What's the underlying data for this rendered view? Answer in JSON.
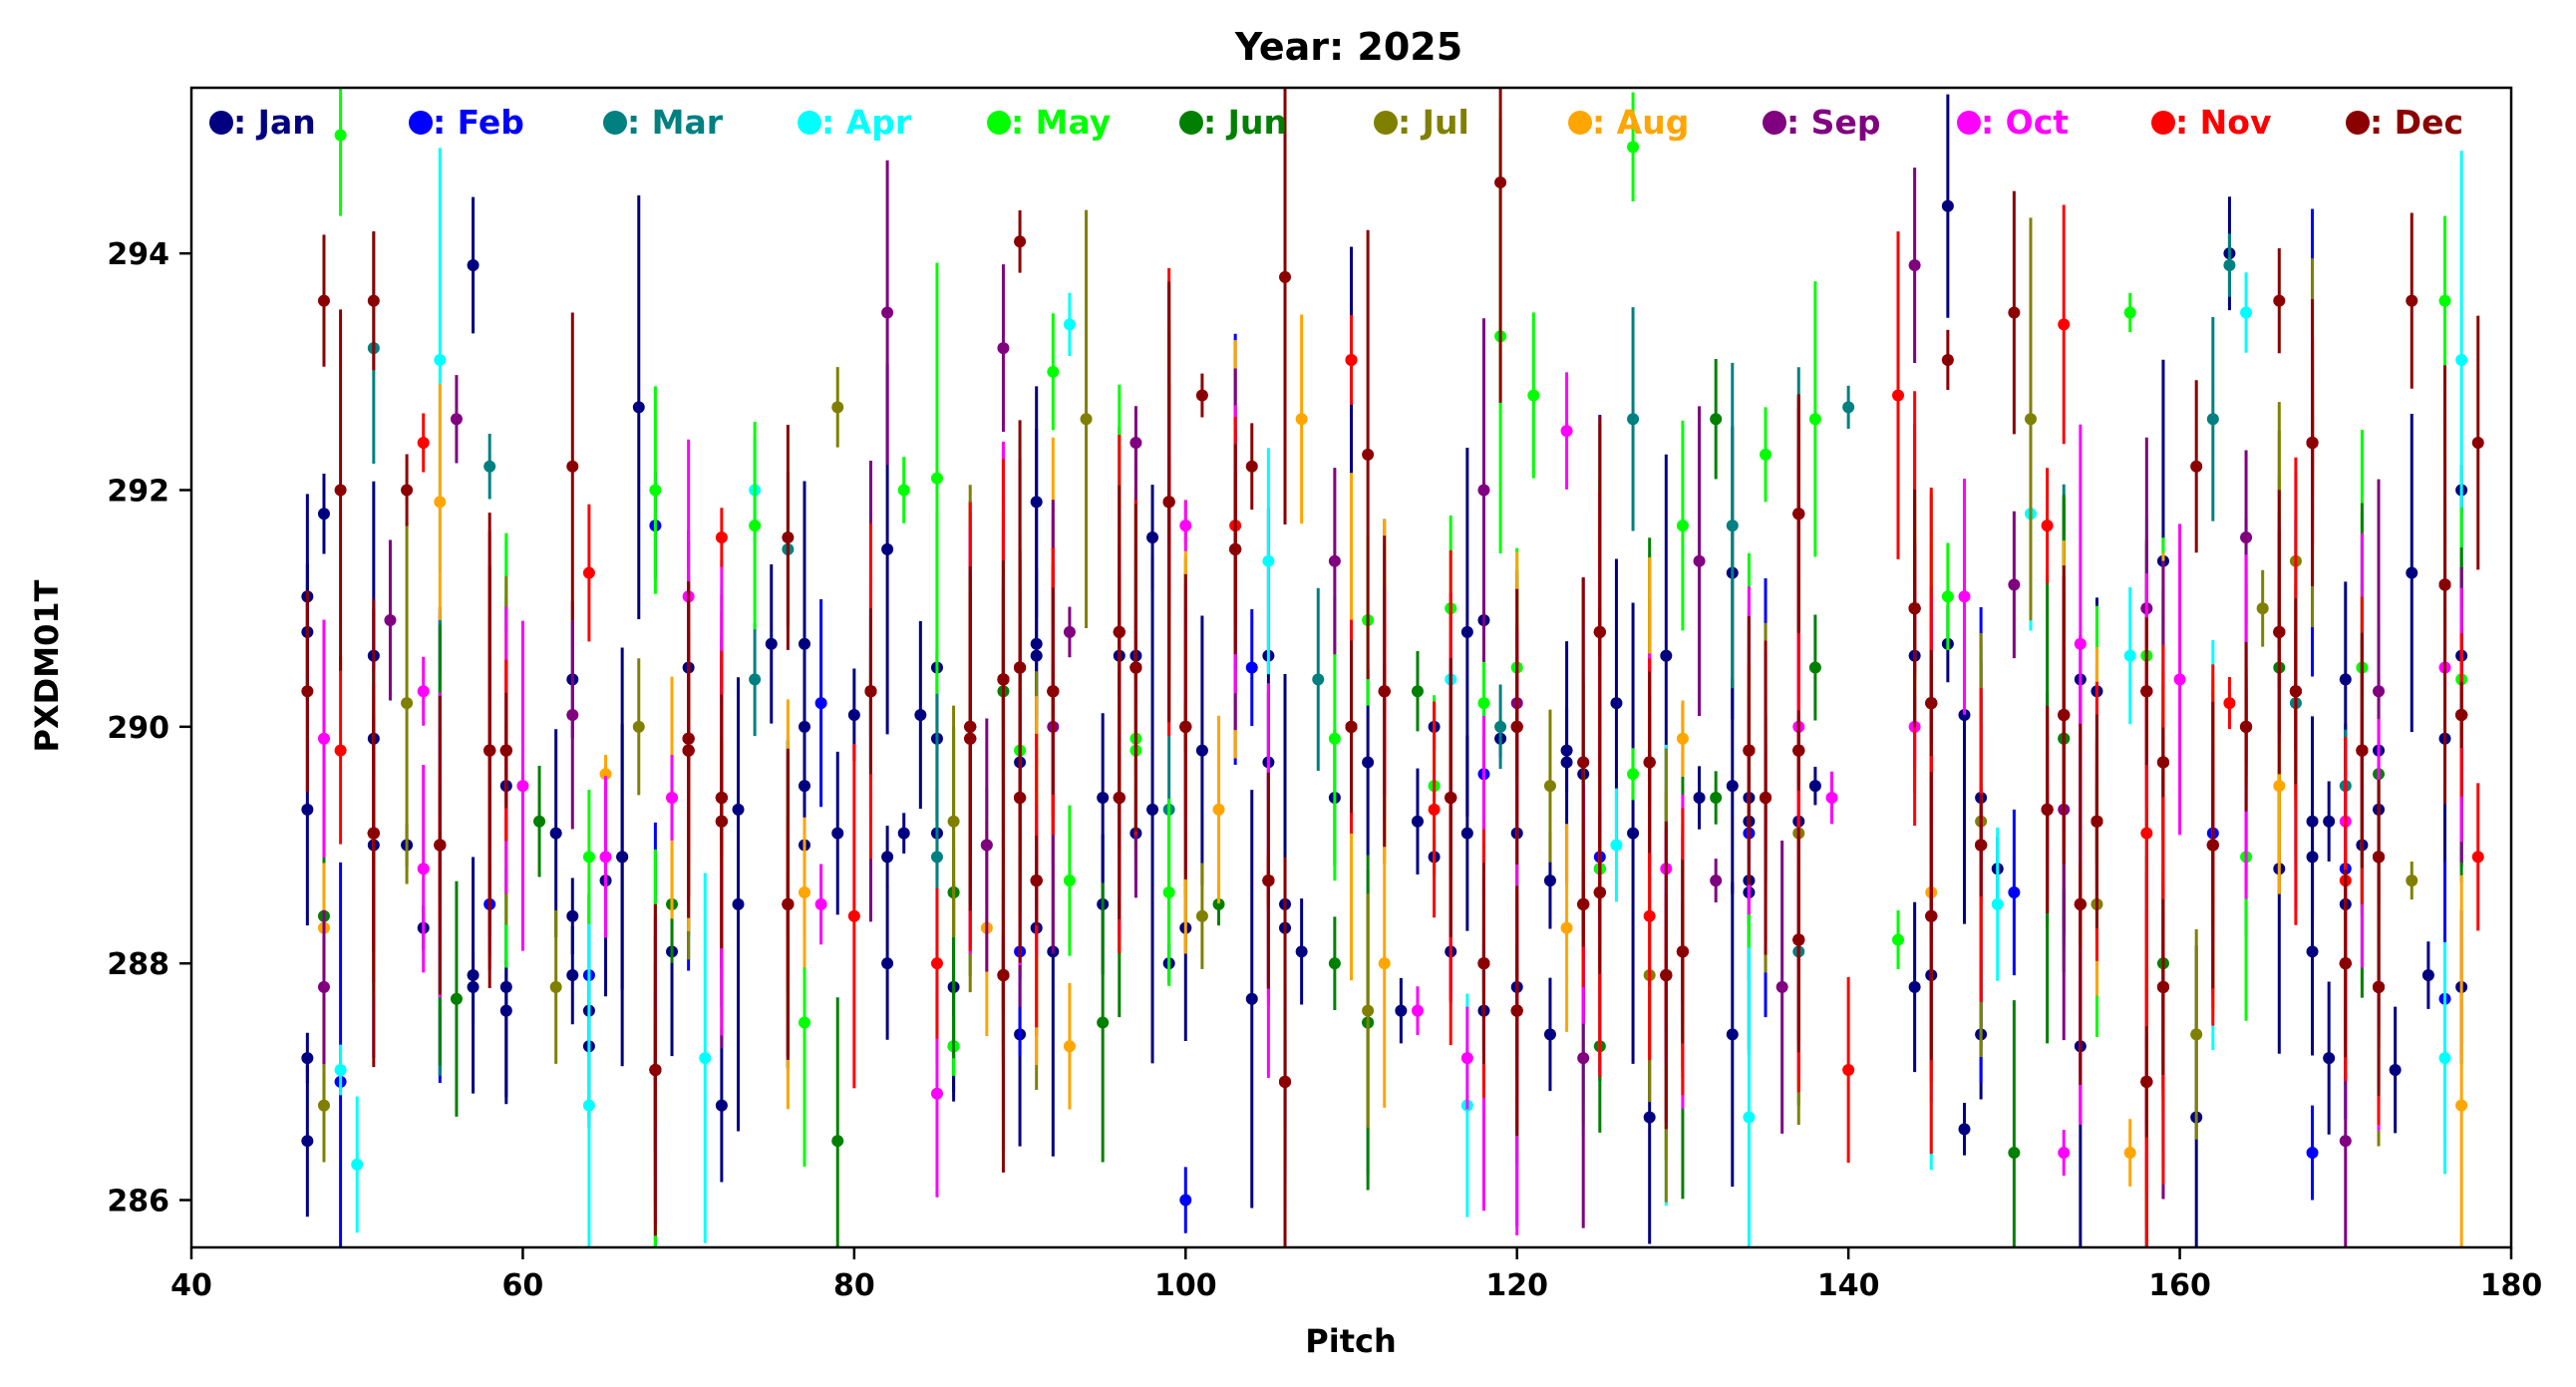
{
  "chart_data": {
    "type": "scatter",
    "title": "Year: 2025",
    "xlabel": "Pitch",
    "ylabel": "PXDM01T",
    "xlim": [
      40,
      180
    ],
    "ylim": [
      285.6,
      295.4
    ],
    "xticks": [
      40,
      60,
      80,
      100,
      120,
      140,
      160,
      180
    ],
    "yticks": [
      286,
      288,
      290,
      292,
      294
    ],
    "grid": false,
    "legend_position": "top",
    "errorbars": true,
    "x_range_observed": [
      47,
      177
    ],
    "series": [
      {
        "name": "Jan",
        "legend_label": ": Jan",
        "color": "#000080",
        "approx_points": [
          [
            47,
            287.2
          ],
          [
            57,
            293.9
          ],
          [
            67,
            292.7
          ],
          [
            73,
            288.5
          ],
          [
            82,
            291.5
          ],
          [
            96,
            290.6
          ],
          [
            110,
            293.1
          ],
          [
            122,
            288.7
          ],
          [
            146,
            294.4
          ],
          [
            163,
            294.0
          ],
          [
            170,
            288.5
          ],
          [
            177,
            287.8
          ]
        ]
      },
      {
        "name": "Feb",
        "legend_label": ": Feb",
        "color": "#0000ff",
        "approx_points": [
          [
            49,
            287.0
          ],
          [
            58,
            288.5
          ],
          [
            64,
            287.9
          ],
          [
            78,
            290.2
          ],
          [
            90,
            288.1
          ],
          [
            100,
            286.0
          ],
          [
            104,
            290.5
          ],
          [
            118,
            289.6
          ],
          [
            125,
            288.9
          ],
          [
            134,
            289.1
          ],
          [
            150,
            288.6
          ],
          [
            162,
            289.1
          ],
          [
            168,
            286.4
          ],
          [
            176,
            287.7
          ]
        ]
      },
      {
        "name": "Mar",
        "legend_label": ": Mar",
        "color": "#008080",
        "approx_points": [
          [
            51,
            293.2
          ],
          [
            58,
            292.2
          ],
          [
            74,
            290.4
          ],
          [
            85,
            288.9
          ],
          [
            99,
            289.3
          ],
          [
            108,
            290.4
          ],
          [
            119,
            290.0
          ],
          [
            127,
            292.6
          ],
          [
            133,
            291.7
          ],
          [
            137,
            288.1
          ],
          [
            140,
            292.7
          ],
          [
            162,
            292.6
          ],
          [
            163,
            293.9
          ],
          [
            170,
            289.5
          ]
        ]
      },
      {
        "name": "Apr",
        "legend_label": ": Apr",
        "color": "#00ffff",
        "approx_points": [
          [
            49,
            287.1
          ],
          [
            50,
            286.3
          ],
          [
            55,
            293.1
          ],
          [
            64,
            286.8
          ],
          [
            71,
            287.2
          ],
          [
            93,
            293.4
          ],
          [
            105,
            291.4
          ],
          [
            116,
            290.4
          ],
          [
            117,
            286.8
          ],
          [
            126,
            289.0
          ],
          [
            134,
            286.7
          ],
          [
            149,
            288.5
          ],
          [
            157,
            290.6
          ],
          [
            164,
            293.5
          ],
          [
            176,
            287.2
          ],
          [
            177,
            293.1
          ]
        ]
      },
      {
        "name": "May",
        "legend_label": ": May",
        "color": "#00ff00",
        "approx_points": [
          [
            49,
            295.0
          ],
          [
            68,
            292.0
          ],
          [
            74,
            291.7
          ],
          [
            83,
            292.0
          ],
          [
            92,
            293.0
          ],
          [
            97,
            289.9
          ],
          [
            111,
            290.9
          ],
          [
            119,
            293.3
          ],
          [
            121,
            292.8
          ],
          [
            127,
            294.9
          ],
          [
            135,
            292.3
          ],
          [
            138,
            292.6
          ],
          [
            146,
            291.1
          ],
          [
            157,
            293.5
          ],
          [
            171,
            290.5
          ],
          [
            176,
            293.6
          ]
        ]
      },
      {
        "name": "Jun",
        "legend_label": ": Jun",
        "color": "#008000",
        "approx_points": [
          [
            48,
            288.4
          ],
          [
            56,
            287.7
          ],
          [
            61,
            289.2
          ],
          [
            69,
            288.5
          ],
          [
            79,
            286.5
          ],
          [
            89,
            290.3
          ],
          [
            95,
            287.5
          ],
          [
            102,
            288.5
          ],
          [
            109,
            288.0
          ],
          [
            114,
            290.3
          ],
          [
            125,
            287.3
          ],
          [
            132,
            292.6
          ],
          [
            138,
            290.5
          ],
          [
            150,
            286.4
          ],
          [
            159,
            288.0
          ],
          [
            166,
            290.5
          ],
          [
            172,
            289.6
          ]
        ]
      },
      {
        "name": "Jul",
        "legend_label": ": Jul",
        "color": "#808000",
        "approx_points": [
          [
            48,
            286.8
          ],
          [
            53,
            290.2
          ],
          [
            62,
            287.8
          ],
          [
            67,
            290.0
          ],
          [
            79,
            292.7
          ],
          [
            86,
            289.2
          ],
          [
            94,
            292.6
          ],
          [
            101,
            288.4
          ],
          [
            111,
            287.6
          ],
          [
            122,
            289.5
          ],
          [
            128,
            287.9
          ],
          [
            137,
            289.1
          ],
          [
            148,
            289.2
          ],
          [
            151,
            292.6
          ],
          [
            161,
            287.4
          ],
          [
            167,
            291.4
          ],
          [
            174,
            288.7
          ]
        ]
      },
      {
        "name": "Aug",
        "legend_label": ": Aug",
        "color": "#ffa500",
        "approx_points": [
          [
            48,
            288.3
          ],
          [
            55,
            291.9
          ],
          [
            65,
            289.6
          ],
          [
            69,
            289.4
          ],
          [
            77,
            288.6
          ],
          [
            88,
            288.3
          ],
          [
            93,
            287.3
          ],
          [
            102,
            289.3
          ],
          [
            107,
            292.6
          ],
          [
            112,
            288.0
          ],
          [
            123,
            288.3
          ],
          [
            130,
            289.9
          ],
          [
            145,
            288.6
          ],
          [
            157,
            286.4
          ],
          [
            166,
            289.5
          ],
          [
            177,
            286.8
          ]
        ]
      },
      {
        "name": "Sep",
        "legend_label": ": Sep",
        "color": "#800080",
        "approx_points": [
          [
            48,
            287.8
          ],
          [
            52,
            290.9
          ],
          [
            56,
            292.6
          ],
          [
            63,
            290.1
          ],
          [
            82,
            293.5
          ],
          [
            89,
            293.2
          ],
          [
            97,
            292.4
          ],
          [
            109,
            291.4
          ],
          [
            118,
            292.0
          ],
          [
            124,
            287.2
          ],
          [
            131,
            291.4
          ],
          [
            136,
            287.8
          ],
          [
            144,
            293.9
          ],
          [
            150,
            291.2
          ],
          [
            164,
            291.6
          ],
          [
            170,
            286.5
          ],
          [
            177,
            290.1
          ]
        ]
      },
      {
        "name": "Oct",
        "legend_label": ": Oct",
        "color": "#ff00ff",
        "approx_points": [
          [
            48,
            289.9
          ],
          [
            54,
            290.3
          ],
          [
            60,
            289.5
          ],
          [
            70,
            291.1
          ],
          [
            78,
            288.5
          ],
          [
            87,
            289.9
          ],
          [
            100,
            291.7
          ],
          [
            114,
            287.6
          ],
          [
            123,
            292.5
          ],
          [
            129,
            288.8
          ],
          [
            139,
            289.4
          ],
          [
            147,
            291.1
          ],
          [
            153,
            286.4
          ],
          [
            160,
            290.4
          ],
          [
            170,
            289.2
          ],
          [
            176,
            290.5
          ]
        ]
      },
      {
        "name": "Nov",
        "legend_label": ": Nov",
        "color": "#ff0000",
        "approx_points": [
          [
            49,
            289.8
          ],
          [
            54,
            292.4
          ],
          [
            64,
            291.3
          ],
          [
            72,
            291.6
          ],
          [
            80,
            288.4
          ],
          [
            85,
            288.0
          ],
          [
            103,
            291.7
          ],
          [
            110,
            293.1
          ],
          [
            115,
            289.3
          ],
          [
            128,
            288.4
          ],
          [
            140,
            287.1
          ],
          [
            143,
            292.8
          ],
          [
            152,
            291.7
          ],
          [
            153,
            293.4
          ],
          [
            158,
            289.1
          ],
          [
            163,
            290.2
          ],
          [
            170,
            288.7
          ],
          [
            178,
            288.9
          ]
        ]
      },
      {
        "name": "Dec",
        "legend_label": ": Dec",
        "color": "#8b0000",
        "approx_points": [
          [
            47,
            290.3
          ],
          [
            48,
            293.6
          ],
          [
            49,
            292.0
          ],
          [
            51,
            293.6
          ],
          [
            53,
            292.0
          ],
          [
            63,
            292.2
          ],
          [
            76,
            291.6
          ],
          [
            90,
            294.1
          ],
          [
            101,
            292.8
          ],
          [
            104,
            292.2
          ],
          [
            106,
            293.8
          ],
          [
            111,
            292.3
          ],
          [
            119,
            294.6
          ],
          [
            146,
            293.1
          ],
          [
            150,
            293.5
          ],
          [
            161,
            292.2
          ],
          [
            166,
            293.6
          ],
          [
            174,
            293.6
          ],
          [
            178,
            292.4
          ]
        ]
      }
    ]
  }
}
